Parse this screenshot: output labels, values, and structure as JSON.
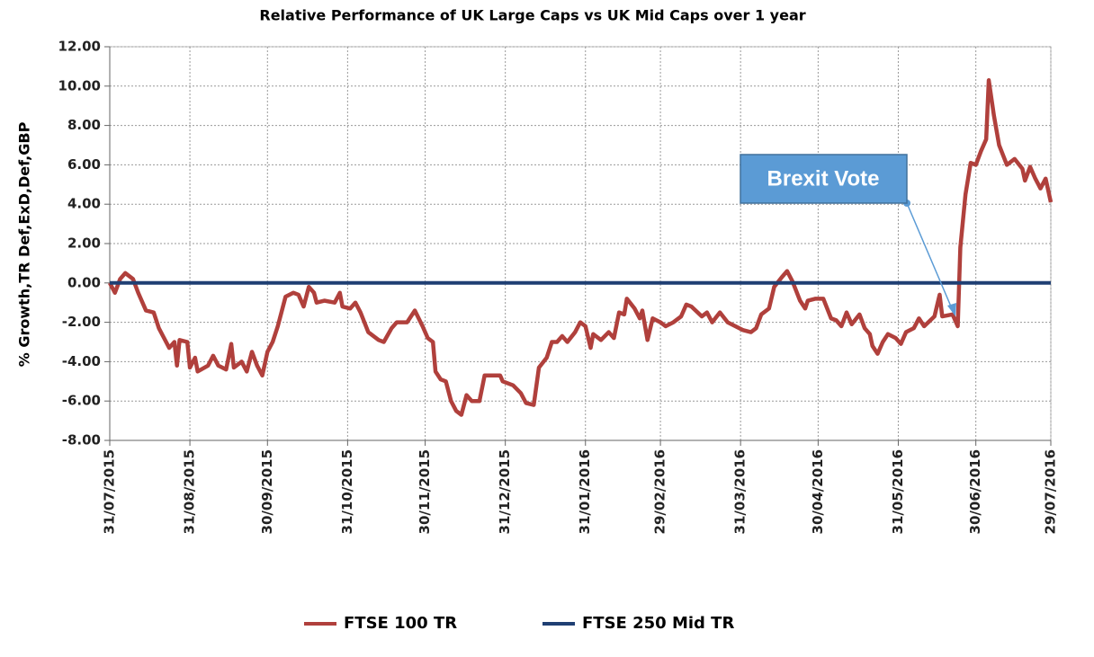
{
  "chart_data": {
    "type": "line",
    "title": "Relative Performance of UK Large Caps vs UK Mid Caps over 1 year",
    "ylabel": "% Growth,TR Def,ExD,Def,GBP",
    "annotation": "Brexit Vote",
    "xlim": [
      "31/07/2015",
      "29/07/2016"
    ],
    "xticks": [
      "31/07/2015",
      "31/08/2015",
      "30/09/2015",
      "31/10/2015",
      "30/11/2015",
      "31/12/2015",
      "31/01/2016",
      "29/02/2016",
      "31/03/2016",
      "30/04/2016",
      "31/05/2016",
      "30/06/2016",
      "29/07/2016"
    ],
    "ylim": [
      -8,
      12
    ],
    "yticks": [
      {
        "value": -8,
        "label": "-8.00"
      },
      {
        "value": -6,
        "label": "-6.00"
      },
      {
        "value": -4,
        "label": "-4.00"
      },
      {
        "value": -2,
        "label": "-2.00"
      },
      {
        "value": 0,
        "label": "0.00"
      },
      {
        "value": 2,
        "label": "2.00"
      },
      {
        "value": 4,
        "label": "4.00"
      },
      {
        "value": 6,
        "label": "6.00"
      },
      {
        "value": 8,
        "label": "8.00"
      },
      {
        "value": 10,
        "label": "10.00"
      },
      {
        "value": 12,
        "label": "12.00"
      }
    ],
    "grid": true,
    "legend": "bottom",
    "series": [
      {
        "name": "FTSE 100 TR",
        "color": "#b0403c",
        "x": [
          "31/07/2015",
          "02/08/2015",
          "04/08/2015",
          "06/08/2015",
          "09/08/2015",
          "11/08/2015",
          "14/08/2015",
          "17/08/2015",
          "19/08/2015",
          "21/08/2015",
          "23/08/2015",
          "25/08/2015",
          "26/08/2015",
          "27/08/2015",
          "30/08/2015",
          "31/08/2015",
          "02/09/2015",
          "03/09/2015",
          "07/09/2015",
          "09/09/2015",
          "11/09/2015",
          "14/09/2015",
          "16/09/2015",
          "17/09/2015",
          "20/09/2015",
          "22/09/2015",
          "24/09/2015",
          "26/09/2015",
          "28/09/2015",
          "30/09/2015",
          "02/10/2015",
          "04/10/2015",
          "07/10/2015",
          "10/10/2015",
          "12/10/2015",
          "14/10/2015",
          "16/10/2015",
          "18/10/2015",
          "19/10/2015",
          "22/10/2015",
          "26/10/2015",
          "28/10/2015",
          "29/10/2015",
          "01/11/2015",
          "03/11/2015",
          "05/11/2015",
          "08/11/2015",
          "12/11/2015",
          "14/11/2015",
          "17/11/2015",
          "19/11/2015",
          "23/11/2015",
          "25/11/2015",
          "26/11/2015",
          "29/11/2015",
          "01/12/2015",
          "03/12/2015",
          "04/12/2015",
          "06/12/2015",
          "08/12/2015",
          "10/12/2015",
          "12/12/2015",
          "14/12/2015",
          "16/12/2015",
          "18/12/2015",
          "21/12/2015",
          "23/12/2015",
          "29/12/2015",
          "30/12/2015",
          "03/01/2016",
          "06/01/2016",
          "08/01/2016",
          "11/01/2016",
          "13/01/2016",
          "16/01/2016",
          "18/01/2016",
          "20/01/2016",
          "22/01/2016",
          "24/01/2016",
          "27/01/2016",
          "29/01/2016",
          "31/01/2016",
          "02/02/2016",
          "03/02/2016",
          "06/02/2016",
          "09/02/2016",
          "11/02/2016",
          "13/02/2016",
          "15/02/2016",
          "16/02/2016",
          "19/02/2016",
          "21/02/2016",
          "22/02/2016",
          "24/02/2016",
          "26/02/2016",
          "29/02/2016",
          "02/03/2016",
          "05/03/2016",
          "08/03/2016",
          "10/03/2016",
          "12/03/2016",
          "16/03/2016",
          "18/03/2016",
          "20/03/2016",
          "23/03/2016",
          "26/03/2016",
          "29/03/2016",
          "01/04/2016",
          "04/04/2016",
          "06/04/2016",
          "08/04/2016",
          "11/04/2016",
          "13/04/2016",
          "16/04/2016",
          "18/04/2016",
          "20/04/2016",
          "23/04/2016",
          "25/04/2016",
          "26/04/2016",
          "29/04/2016",
          "02/05/2016",
          "05/05/2016",
          "07/05/2016",
          "09/05/2016",
          "11/05/2016",
          "13/05/2016",
          "16/05/2016",
          "18/05/2016",
          "20/05/2016",
          "21/05/2016",
          "23/05/2016",
          "25/05/2016",
          "27/05/2016",
          "30/05/2016",
          "01/06/2016",
          "03/06/2016",
          "06/06/2016",
          "08/06/2016",
          "10/06/2016",
          "14/06/2016",
          "16/06/2016",
          "17/06/2016",
          "21/06/2016",
          "23/06/2016",
          "24/06/2016",
          "26/06/2016",
          "28/06/2016",
          "30/06/2016",
          "02/07/2016",
          "04/07/2016",
          "05/07/2016",
          "07/07/2016",
          "09/07/2016",
          "12/07/2016",
          "14/07/2016",
          "15/07/2016",
          "18/07/2016",
          "19/07/2016",
          "21/07/2016",
          "23/07/2016",
          "25/07/2016",
          "27/07/2016",
          "29/07/2016"
        ],
        "values": [
          0,
          -0.5,
          0.2,
          0.5,
          0.2,
          -0.5,
          -1.4,
          -1.5,
          -2.3,
          -2.8,
          -3.3,
          -3.0,
          -4.2,
          -2.9,
          -3.0,
          -4.3,
          -3.8,
          -4.5,
          -4.2,
          -3.7,
          -4.2,
          -4.4,
          -3.1,
          -4.3,
          -4.0,
          -4.5,
          -3.5,
          -4.2,
          -4.7,
          -3.5,
          -3.0,
          -2.2,
          -0.7,
          -0.5,
          -0.6,
          -1.2,
          -0.2,
          -0.5,
          -1.0,
          -0.9,
          -1.0,
          -0.5,
          -1.2,
          -1.3,
          -1.0,
          -1.5,
          -2.5,
          -2.9,
          -3.0,
          -2.3,
          -2.0,
          -2.0,
          -1.6,
          -1.4,
          -2.2,
          -2.8,
          -3.0,
          -4.5,
          -4.9,
          -5.0,
          -6.0,
          -6.5,
          -6.7,
          -5.7,
          -6.0,
          -6.0,
          -4.7,
          -4.7,
          -5.0,
          -5.2,
          -5.6,
          -6.1,
          -6.2,
          -4.3,
          -3.8,
          -3.0,
          -3.0,
          -2.7,
          -3.0,
          -2.5,
          -2.0,
          -2.2,
          -3.3,
          -2.6,
          -2.9,
          -2.5,
          -2.8,
          -1.5,
          -1.6,
          -0.8,
          -1.3,
          -1.8,
          -1.4,
          -2.9,
          -1.8,
          -2.0,
          -2.2,
          -2.0,
          -1.7,
          -1.1,
          -1.2,
          -1.7,
          -1.5,
          -2.0,
          -1.5,
          -2.0,
          -2.2,
          -2.4,
          -2.5,
          -2.3,
          -1.6,
          -1.3,
          -0.2,
          0.3,
          0.6,
          0.1,
          -0.9,
          -1.3,
          -0.9,
          -0.8,
          -0.8,
          -1.8,
          -1.9,
          -2.2,
          -1.5,
          -2.1,
          -1.6,
          -2.3,
          -2.6,
          -3.2,
          -3.6,
          -3.0,
          -2.6,
          -2.8,
          -3.1,
          -2.5,
          -2.3,
          -1.8,
          -2.2,
          -1.7,
          -0.6,
          -1.7,
          -1.6,
          -2.2,
          1.8,
          4.5,
          6.1,
          6.0,
          6.7,
          7.3,
          10.3,
          8.5,
          7.0,
          6.0,
          6.2,
          6.3,
          5.8,
          5.2,
          5.9,
          5.3,
          4.8,
          5.3,
          4.1
        ]
      },
      {
        "name": "FTSE 250 Mid TR",
        "color": "#1f3f73",
        "x": [
          "31/07/2015",
          "29/07/2016"
        ],
        "values": [
          0,
          0
        ]
      }
    ]
  }
}
